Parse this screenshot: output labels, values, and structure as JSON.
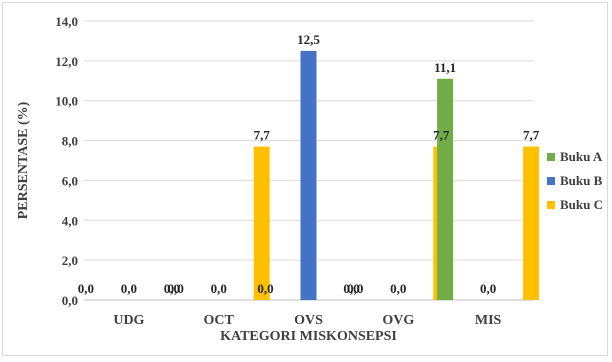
{
  "chart_data": {
    "type": "bar",
    "categories": [
      "UDG",
      "OCT",
      "OVS",
      "OVG",
      "MIS"
    ],
    "series": [
      {
        "name": "Buku A",
        "color": "#70ad47",
        "values": [
          0.0,
          0.0,
          0.0,
          0.0,
          11.1
        ],
        "labels": [
          "0,0",
          "0,0",
          "0,0",
          "0,0",
          "11,1"
        ]
      },
      {
        "name": "Buku B",
        "color": "#4472c4",
        "values": [
          0.0,
          0.0,
          12.5,
          0.0,
          0.0
        ],
        "labels": [
          "0,0",
          "0,0",
          "12,5",
          "0,0",
          "0,0"
        ]
      },
      {
        "name": "Buku C",
        "color": "#ffc000",
        "values": [
          0.0,
          7.7,
          0.0,
          7.7,
          7.7
        ],
        "labels": [
          "0,0",
          "7,7",
          "0,0",
          "7,7",
          "7,7"
        ]
      }
    ],
    "xlabel": "KATEGORI MISKONSEPSI",
    "ylabel": "PERSENTASE (%)",
    "ylim": [
      0,
      14
    ],
    "ytick_values": [
      0,
      2,
      4,
      6,
      8,
      10,
      12,
      14
    ],
    "ytick_labels": [
      "0,0",
      "2,0",
      "4,0",
      "6,0",
      "8,0",
      "10,0",
      "12,0",
      "14,0"
    ],
    "grid": true,
    "legend_position": "right"
  }
}
